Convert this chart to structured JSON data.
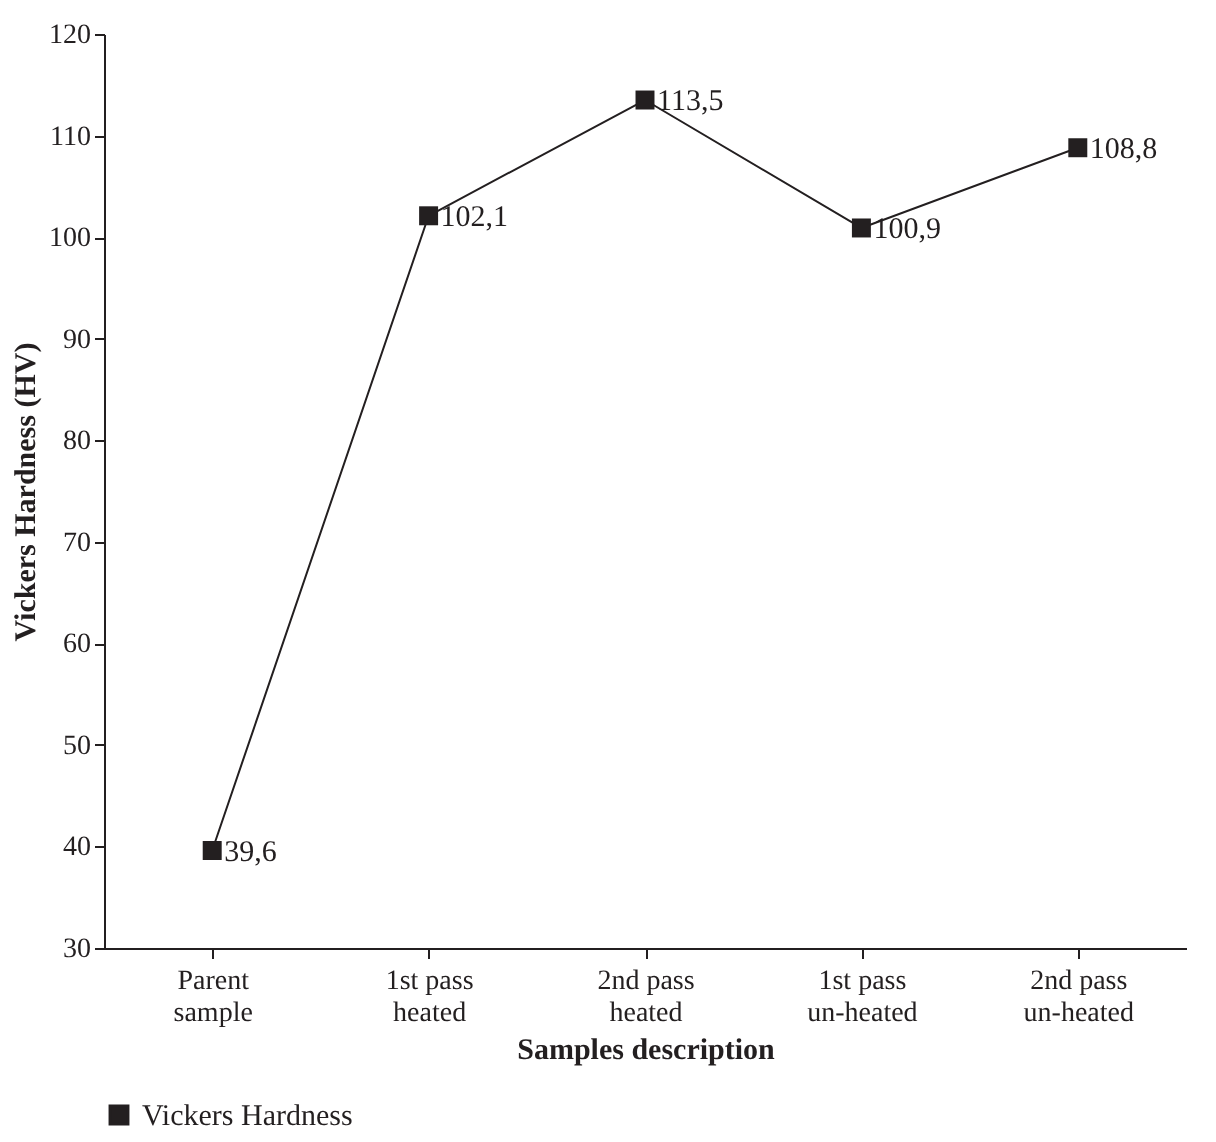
{
  "chart_data": {
    "type": "line",
    "xlabel": "Samples description",
    "ylabel": "Vickers Hardness (HV)",
    "categories": [
      "Parent\nsample",
      "1st pass\nheated",
      "2nd pass\nheated",
      "1st pass\nun-heated",
      "2nd pass\nun-heated"
    ],
    "series": [
      {
        "name": "Vickers Hardness",
        "color": "#231f20",
        "values": [
          39.6,
          102.1,
          113.5,
          100.9,
          108.8
        ],
        "value_labels": [
          "39,6",
          "102,1",
          "113,5",
          "100,9",
          "108,8"
        ]
      }
    ],
    "ylim": [
      30,
      120
    ],
    "yticks": [
      30,
      40,
      50,
      60,
      70,
      80,
      90,
      100,
      110,
      120
    ],
    "grid": false,
    "legend": "bottom",
    "marker": "square",
    "line_style": "solid"
  }
}
